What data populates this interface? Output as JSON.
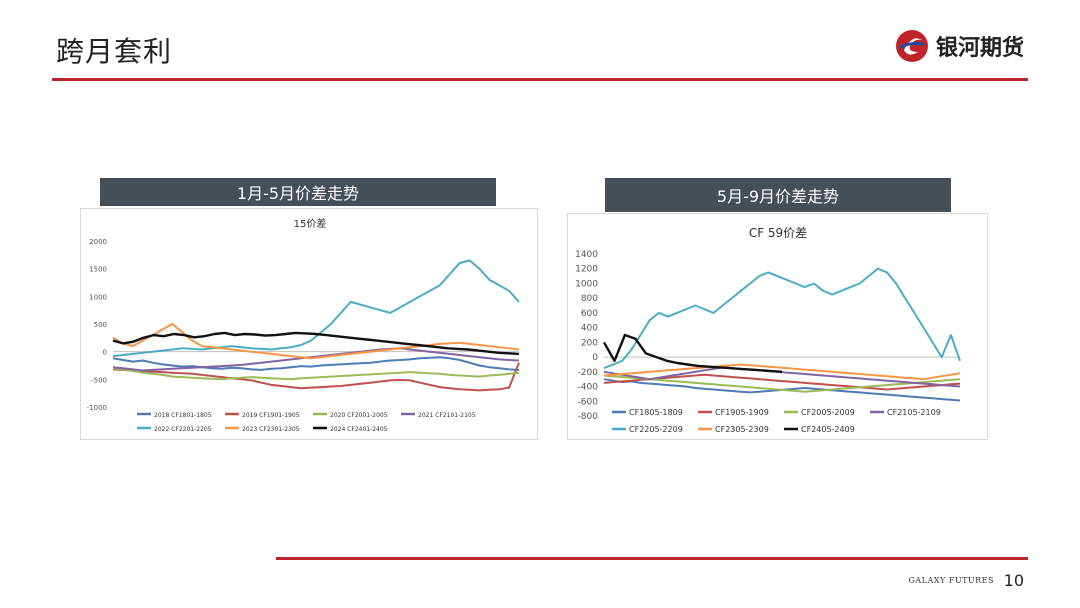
{
  "slide": {
    "title": "跨月套利",
    "logo_text": "银河期货",
    "footer_brand": "GALAXY FUTURES",
    "page_number": "10",
    "accent_color": "#c0242b",
    "header_color": "#464e58"
  },
  "panels": {
    "left_header": "1月-5月价差走势",
    "right_header": "5月-9月价差走势"
  },
  "chart_data": [
    {
      "type": "line",
      "title": "15价差",
      "xlabel": "",
      "ylabel": "",
      "ylim": [
        -1000,
        2000
      ],
      "yticks": [
        2000,
        1500,
        1000,
        500,
        0,
        -500,
        -1000
      ],
      "grid": false,
      "legend_position": "bottom",
      "series": [
        {
          "name": "2018 CF1801-1805",
          "color": "#4e7ab5",
          "values": [
            -120,
            -150,
            -180,
            -160,
            -200,
            -230,
            -250,
            -270,
            -260,
            -280,
            -300,
            -310,
            -290,
            -300,
            -320,
            -330,
            -310,
            -300,
            -280,
            -260,
            -270,
            -250,
            -240,
            -230,
            -220,
            -210,
            -200,
            -180,
            -160,
            -150,
            -140,
            -120,
            -110,
            -100,
            -120,
            -150,
            -200,
            -250,
            -280,
            -300,
            -320,
            -330
          ]
        },
        {
          "name": "2019 CF1901-1905",
          "color": "#c0504d",
          "values": [
            -320,
            -330,
            -340,
            -350,
            -360,
            -370,
            -380,
            -390,
            -400,
            -420,
            -440,
            -460,
            -480,
            -500,
            -520,
            -560,
            -600,
            -620,
            -640,
            -660,
            -650,
            -640,
            -630,
            -620,
            -600,
            -580,
            -560,
            -540,
            -520,
            -510,
            -520,
            -560,
            -600,
            -640,
            -660,
            -680,
            -690,
            -700,
            -690,
            -680,
            -650,
            -200
          ]
        },
        {
          "name": "2020 CF2001-2005",
          "color": "#9bbb59",
          "values": [
            -300,
            -320,
            -350,
            -380,
            -400,
            -420,
            -450,
            -460,
            -470,
            -480,
            -490,
            -500,
            -480,
            -470,
            -460,
            -470,
            -480,
            -490,
            -500,
            -480,
            -470,
            -460,
            -450,
            -440,
            -430,
            -420,
            -410,
            -400,
            -390,
            -380,
            -370,
            -380,
            -390,
            -400,
            -420,
            -430,
            -440,
            -450,
            -430,
            -420,
            -400,
            -380
          ]
        },
        {
          "name": "2021 CF2101-2105",
          "color": "#8064a2",
          "values": [
            -280,
            -300,
            -320,
            -340,
            -330,
            -320,
            -310,
            -300,
            -290,
            -280,
            -270,
            -260,
            -250,
            -240,
            -220,
            -200,
            -180,
            -160,
            -140,
            -120,
            -100,
            -80,
            -60,
            -40,
            -20,
            0,
            20,
            40,
            50,
            60,
            40,
            20,
            0,
            -20,
            -40,
            -60,
            -80,
            -100,
            -120,
            -140,
            -150,
            -160
          ]
        },
        {
          "name": "2022 CF2201-2205",
          "color": "#4bacc6",
          "values": [
            -80,
            -60,
            -40,
            -20,
            0,
            20,
            40,
            60,
            50,
            40,
            60,
            80,
            100,
            80,
            60,
            50,
            40,
            60,
            80,
            120,
            200,
            350,
            500,
            700,
            900,
            850,
            800,
            750,
            700,
            800,
            900,
            1000,
            1100,
            1200,
            1400,
            1600,
            1650,
            1500,
            1300,
            1200,
            1100,
            900
          ]
        },
        {
          "name": "2023 CF2301-2305",
          "color": "#f79646",
          "values": [
            250,
            150,
            100,
            200,
            300,
            400,
            500,
            350,
            200,
            100,
            80,
            60,
            40,
            20,
            0,
            -20,
            -40,
            -60,
            -80,
            -100,
            -120,
            -100,
            -80,
            -60,
            -40,
            -20,
            0,
            20,
            40,
            60,
            80,
            100,
            120,
            140,
            150,
            160,
            140,
            120,
            100,
            80,
            60,
            40
          ]
        },
        {
          "name": "2024 CF2401-2405",
          "color": "#111111",
          "values": [
            200,
            150,
            180,
            250,
            300,
            280,
            320,
            300,
            260,
            280,
            320,
            340,
            300,
            320,
            310,
            290,
            300,
            320,
            340,
            330,
            320,
            300,
            280,
            260,
            240,
            220,
            200,
            180,
            160,
            140,
            120,
            100,
            80,
            60,
            50,
            40,
            20,
            0,
            -20,
            -30,
            -40
          ]
        }
      ]
    },
    {
      "type": "line",
      "title": "CF 59价差",
      "xlabel": "",
      "ylabel": "",
      "ylim": [
        -800,
        1400
      ],
      "yticks": [
        1400,
        1200,
        1000,
        800,
        600,
        400,
        200,
        0,
        -200,
        -400,
        -600,
        -800
      ],
      "grid": false,
      "legend_position": "bottom",
      "series": [
        {
          "name": "CF1805-1809",
          "color": "#4e7ab5",
          "values": [
            -300,
            -320,
            -340,
            -330,
            -350,
            -360,
            -370,
            -380,
            -390,
            -400,
            -420,
            -430,
            -440,
            -450,
            -460,
            -470,
            -480,
            -470,
            -460,
            -450,
            -440,
            -430,
            -420,
            -430,
            -440,
            -450,
            -460,
            -470,
            -480,
            -490,
            -500,
            -510,
            -520,
            -530,
            -540,
            -550,
            -560,
            -570,
            -580,
            -590
          ]
        },
        {
          "name": "CF1905-1909",
          "color": "#c0504d",
          "values": [
            -350,
            -340,
            -330,
            -320,
            -310,
            -300,
            -290,
            -280,
            -270,
            -260,
            -250,
            -240,
            -250,
            -260,
            -270,
            -280,
            -290,
            -300,
            -310,
            -320,
            -330,
            -340,
            -350,
            -360,
            -370,
            -380,
            -390,
            -400,
            -410,
            -420,
            -430,
            -440,
            -430,
            -420,
            -410,
            -400,
            -390,
            -380,
            -370,
            -360
          ]
        },
        {
          "name": "CF2005-2009",
          "color": "#9bbb59",
          "values": [
            -250,
            -260,
            -270,
            -280,
            -290,
            -300,
            -310,
            -320,
            -330,
            -340,
            -350,
            -360,
            -370,
            -380,
            -390,
            -400,
            -410,
            -420,
            -430,
            -440,
            -450,
            -460,
            -470,
            -460,
            -450,
            -440,
            -430,
            -420,
            -410,
            -400,
            -390,
            -380,
            -370,
            -360,
            -350,
            -340,
            -330,
            -320,
            -310,
            -300
          ]
        },
        {
          "name": "CF2105-2109",
          "color": "#8064a2",
          "values": [
            -200,
            -220,
            -240,
            -260,
            -280,
            -300,
            -280,
            -260,
            -240,
            -220,
            -200,
            -180,
            -160,
            -140,
            -150,
            -160,
            -170,
            -180,
            -190,
            -200,
            -210,
            -220,
            -230,
            -240,
            -250,
            -260,
            -270,
            -280,
            -290,
            -300,
            -310,
            -320,
            -330,
            -340,
            -350,
            -360,
            -370,
            -380,
            -390,
            -400
          ]
        },
        {
          "name": "CF2205-2209",
          "color": "#4bacc6",
          "values": [
            -150,
            -100,
            -50,
            100,
            300,
            500,
            600,
            550,
            600,
            650,
            700,
            650,
            600,
            700,
            800,
            900,
            1000,
            1100,
            1150,
            1100,
            1050,
            1000,
            950,
            1000,
            900,
            850,
            900,
            950,
            1000,
            1100,
            1200,
            1150,
            1000,
            800,
            600,
            400,
            200,
            0,
            300,
            -50
          ]
        },
        {
          "name": "CF2305-2309",
          "color": "#f79646",
          "values": [
            -250,
            -240,
            -230,
            -220,
            -210,
            -200,
            -190,
            -180,
            -170,
            -160,
            -150,
            -140,
            -130,
            -120,
            -110,
            -100,
            -110,
            -120,
            -130,
            -140,
            -150,
            -160,
            -170,
            -180,
            -190,
            -200,
            -210,
            -220,
            -230,
            -240,
            -250,
            -260,
            -270,
            -280,
            -290,
            -300,
            -280,
            -260,
            -240,
            -220
          ]
        },
        {
          "name": "CF2405-2409",
          "color": "#111111",
          "values": [
            200,
            -50,
            300,
            250,
            50,
            0,
            -50,
            -80,
            -100,
            -120,
            -130,
            -140,
            -150,
            -160,
            -170,
            -180,
            -190,
            -200
          ]
        }
      ]
    }
  ]
}
